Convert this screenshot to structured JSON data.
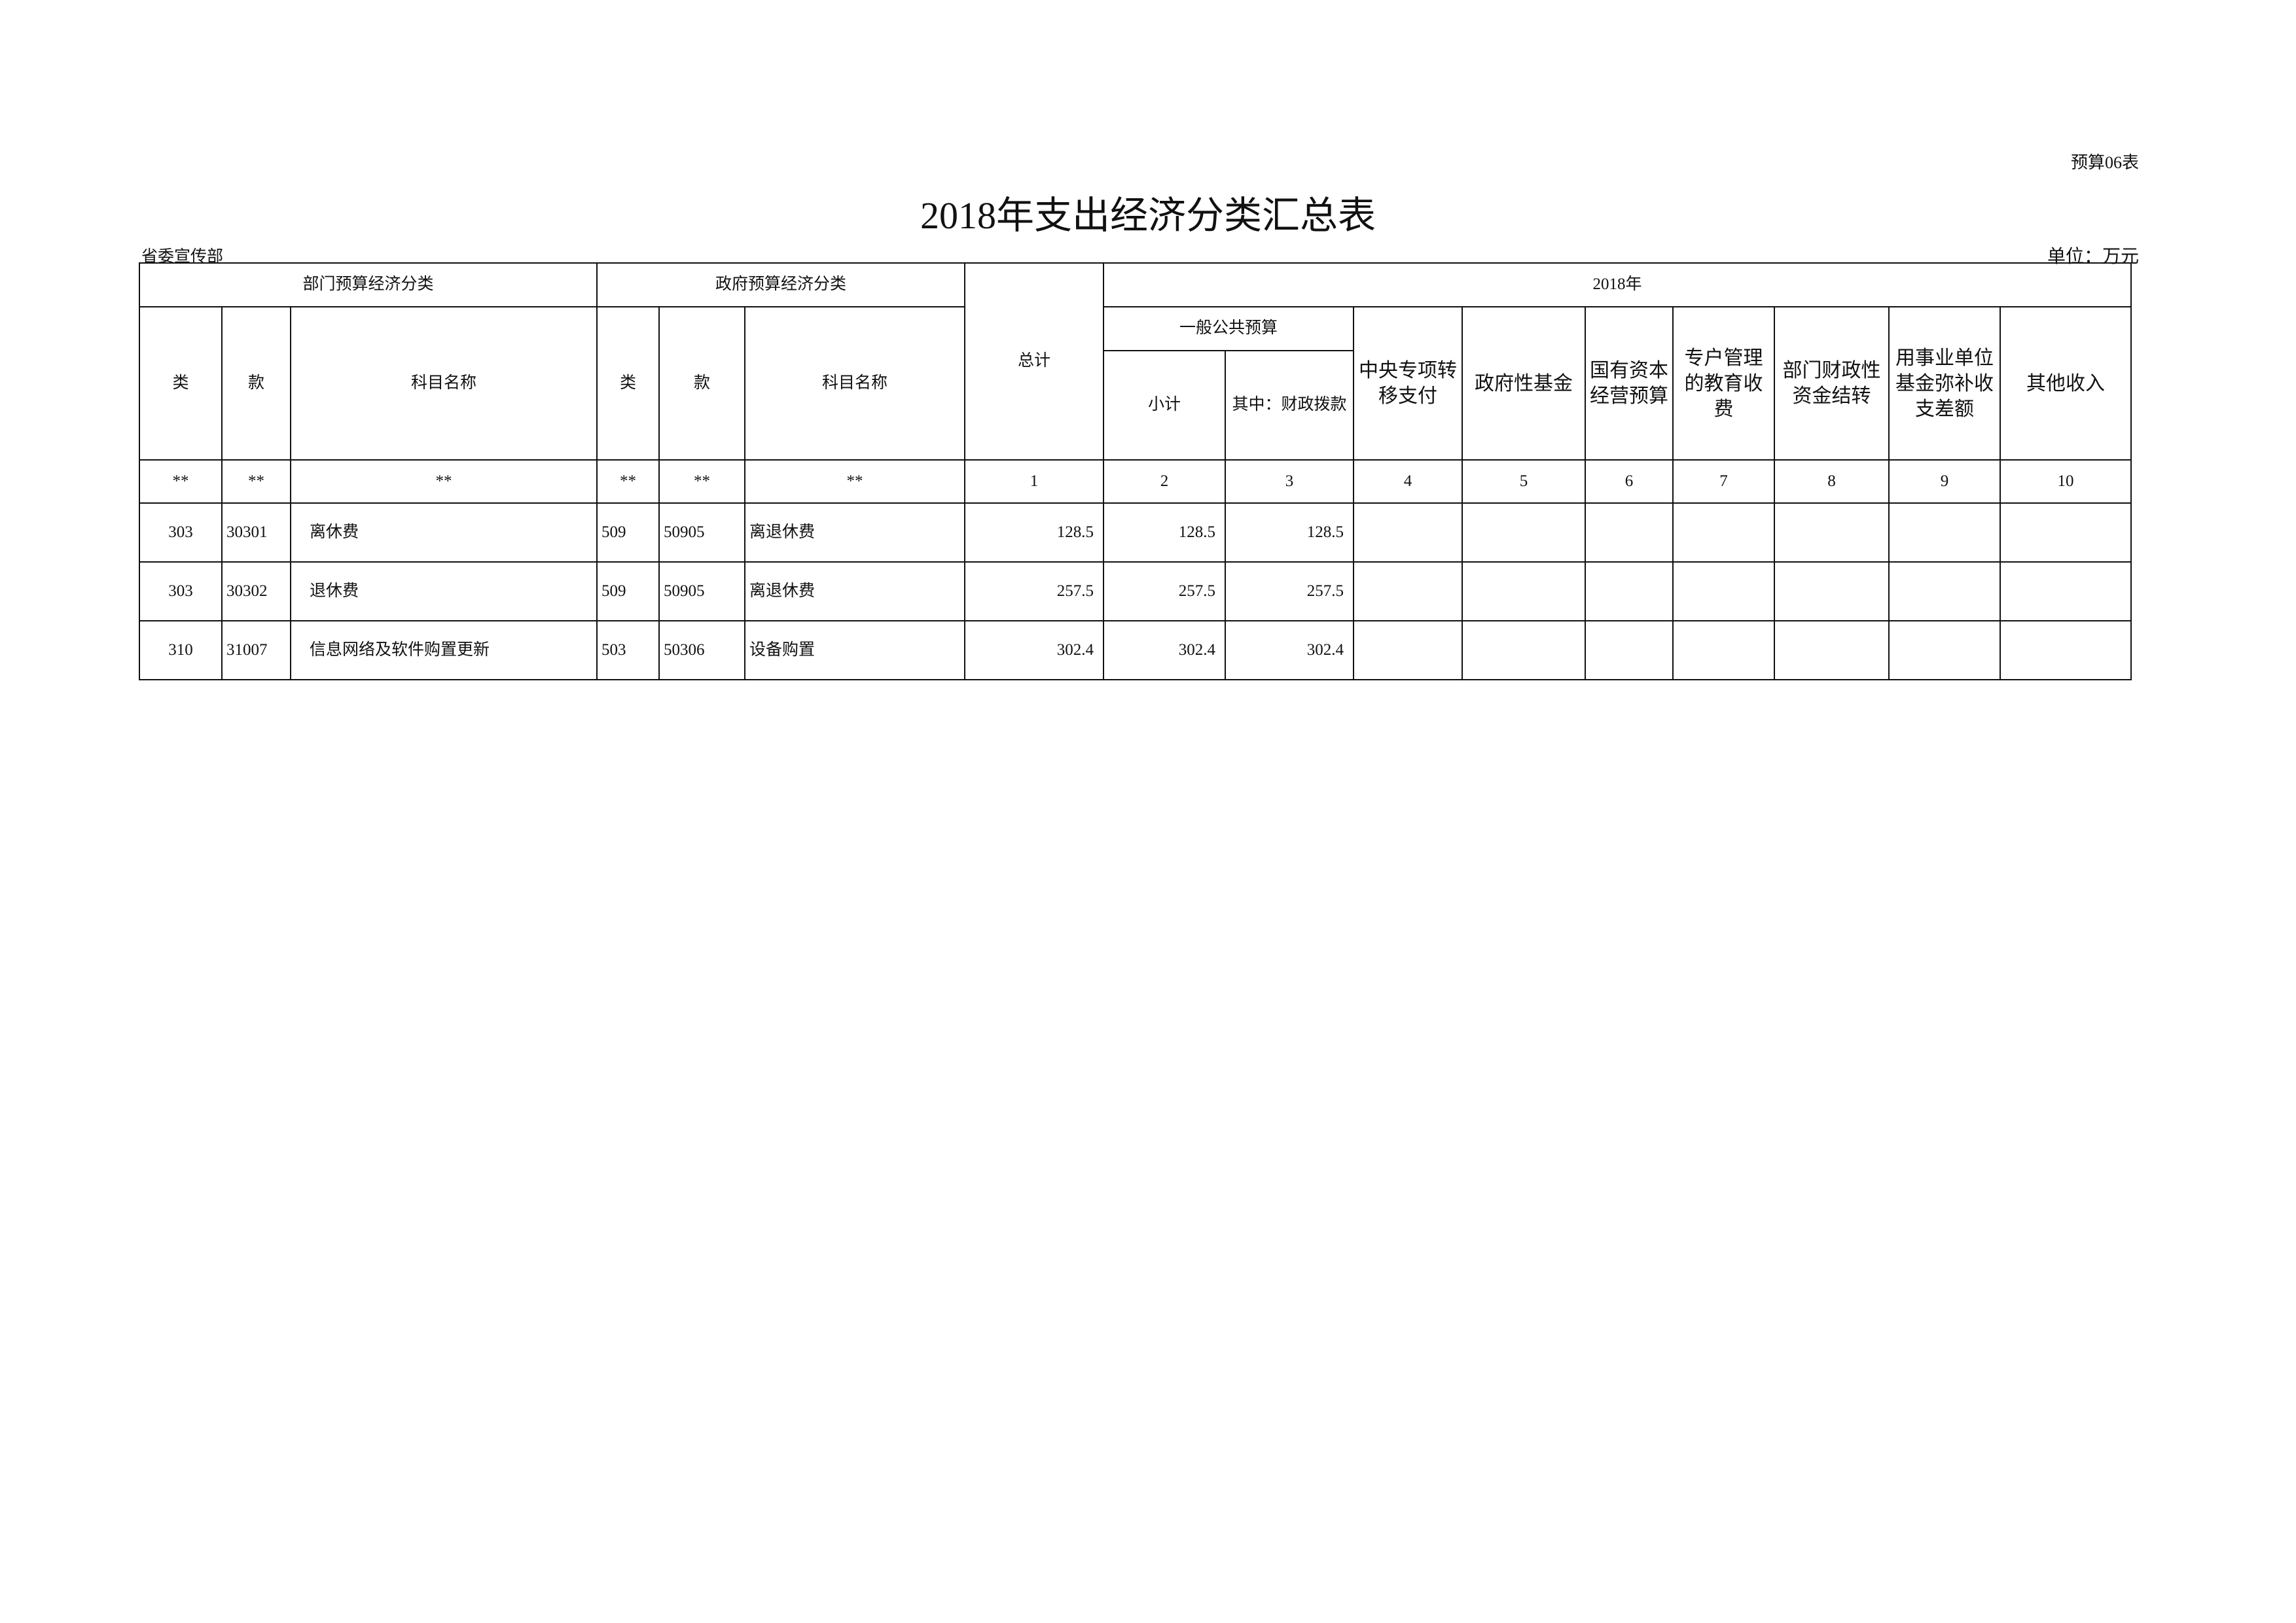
{
  "form_no": "预算06表",
  "title": "2018年支出经济分类汇总表",
  "org": "省委宣传部",
  "unit": "单位：万元",
  "header": {
    "dept_group": "部门预算经济分类",
    "gov_group": "政府预算经济分类",
    "total": "总计",
    "year_group": "2018年",
    "lei": "类",
    "kuan": "款",
    "subject": "科目名称",
    "general_budget": "一般公共预算",
    "subtotal": "小计",
    "fiscal": "其中：财政拨款",
    "central_transfer": "中央专项转移支付",
    "gov_fund": "政府性基金",
    "state_capital": "国有资本经营预算",
    "edu_fee": "专户管理的教育收费",
    "dept_carryover": "部门财政性资金结转",
    "reserve_fund": "用事业单位基金弥补收支差额",
    "other_income": "其他收入"
  },
  "index_row": [
    "**",
    "**",
    "**",
    "**",
    "**",
    "**",
    "1",
    "2",
    "3",
    "4",
    "5",
    "6",
    "7",
    "8",
    "9",
    "10"
  ],
  "rows": [
    {
      "lei": "303",
      "kuan": "30301",
      "name": "离休费",
      "g_lei": "509",
      "g_kuan": "50905",
      "g_name": "离退休费",
      "total": "128.5",
      "subtotal": "128.5",
      "fiscal": "128.5"
    },
    {
      "lei": "303",
      "kuan": "30302",
      "name": "退休费",
      "g_lei": "509",
      "g_kuan": "50905",
      "g_name": "离退休费",
      "total": "257.5",
      "subtotal": "257.5",
      "fiscal": "257.5"
    },
    {
      "lei": "310",
      "kuan": "31007",
      "name": "信息网络及软件购置更新",
      "g_lei": "503",
      "g_kuan": "50306",
      "g_name": "设备购置",
      "total": "302.4",
      "subtotal": "302.4",
      "fiscal": "302.4"
    }
  ]
}
